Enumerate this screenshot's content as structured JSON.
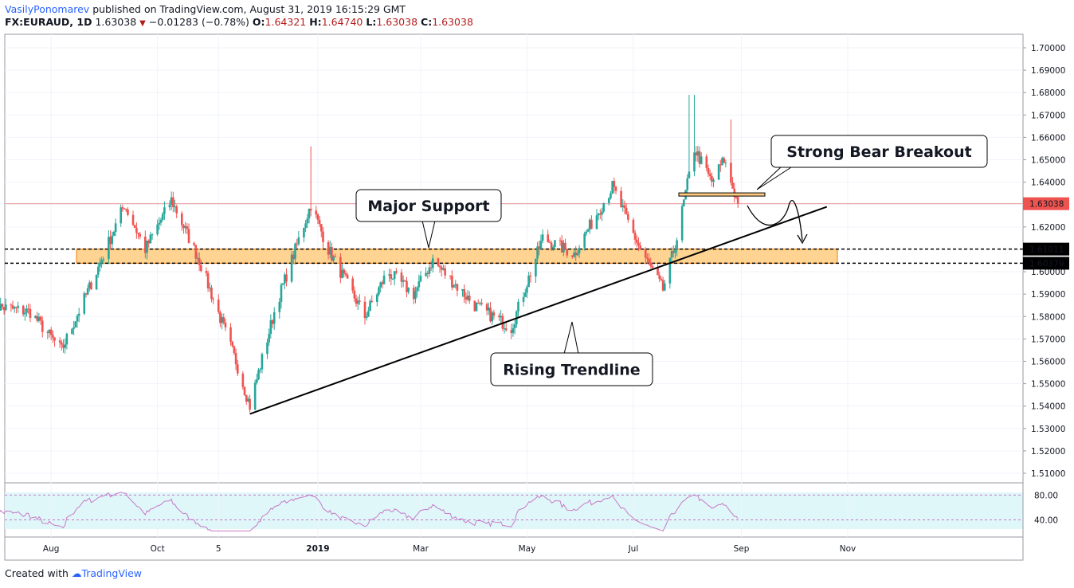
{
  "header": {
    "author": "VasilyPonomarev",
    "published_text": "published on TradingView.com, August 31, 2019 16:15:29 GMT",
    "symbol": "FX:EURAUD, 1D",
    "last": "1.63038",
    "change": "−0.01283 (−0.78%)",
    "o_label": "O:",
    "o_value": "1.64321",
    "h_label": "H:",
    "h_value": "1.64740",
    "l_label": "L:",
    "l_value": "1.63038",
    "c_label": "C:",
    "c_value": "1.63038"
  },
  "footer": {
    "created_with": "Created with",
    "brand": "TradingView"
  },
  "colors": {
    "up": "#26a69a",
    "down": "#ef5350",
    "zone": "#ffcc80",
    "rsi_line": "#c678c6",
    "rsi_band": "#e0f7fa",
    "price_line": "#ef9a9a"
  },
  "chart_data": {
    "type": "candlestick",
    "symbol": "FX:EURAUD",
    "timeframe": "1D",
    "ylim": [
      1.505,
      1.705
    ],
    "y_ticks": [
      "1.70000",
      "1.69000",
      "1.68000",
      "1.67000",
      "1.66000",
      "1.65000",
      "1.64000",
      "1.63000",
      "1.62000",
      "1.61000",
      "1.60000",
      "1.59000",
      "1.58000",
      "1.57000",
      "1.56000",
      "1.55000",
      "1.54000",
      "1.53000",
      "1.52000",
      "1.51000"
    ],
    "x_ticks": [
      "Aug",
      "Oct",
      "5",
      "2019",
      "Mar",
      "May",
      "Jul",
      "Sep",
      "Nov"
    ],
    "price_badges": [
      {
        "label": "1.63038",
        "value": 1.63038,
        "kind": "last"
      },
      {
        "label": "1.61011",
        "value": 1.61011,
        "kind": "level"
      },
      {
        "label": "1.60379",
        "value": 1.60379,
        "kind": "level"
      }
    ],
    "support_zone": {
      "from": 1.60379,
      "to": 1.61011
    },
    "breakout_level": 1.6345,
    "trendline": {
      "from": [
        "2018-11-23",
        1.5365
      ],
      "to": [
        "2019-10-20",
        1.629
      ]
    },
    "annotations": [
      "Major Support",
      "Strong  Bear Breakout",
      "Rising Trendline"
    ],
    "anchors": [
      [
        "2018-06-27",
        1.585
      ],
      [
        "2018-07-20",
        1.582
      ],
      [
        "2018-08-07",
        1.565
      ],
      [
        "2018-08-27",
        1.6
      ],
      [
        "2018-09-12",
        1.63
      ],
      [
        "2018-09-24",
        1.61
      ],
      [
        "2018-10-09",
        1.632
      ],
      [
        "2018-10-25",
        1.605
      ],
      [
        "2018-11-15",
        1.56
      ],
      [
        "2018-11-23",
        1.54
      ],
      [
        "2018-12-08",
        1.585
      ],
      [
        "2018-12-28",
        1.63
      ],
      [
        "2019-01-07",
        1.61
      ],
      [
        "2019-01-28",
        1.58
      ],
      [
        "2019-02-10",
        1.6
      ],
      [
        "2019-02-25",
        1.59
      ],
      [
        "2019-03-08",
        1.605
      ],
      [
        "2019-04-01",
        1.585
      ],
      [
        "2019-04-22",
        1.575
      ],
      [
        "2019-05-10",
        1.615
      ],
      [
        "2019-05-28",
        1.608
      ],
      [
        "2019-06-19",
        1.638
      ],
      [
        "2019-07-05",
        1.61
      ],
      [
        "2019-07-18",
        1.592
      ],
      [
        "2019-07-26",
        1.615
      ],
      [
        "2019-08-05",
        1.655
      ],
      [
        "2019-08-15",
        1.64
      ],
      [
        "2019-08-22",
        1.65
      ],
      [
        "2019-08-30",
        1.6304
      ]
    ],
    "rsi": {
      "levels": [
        80,
        40
      ],
      "level_labels": [
        "80.00",
        "40.00"
      ],
      "ylim": [
        20,
        92
      ]
    }
  }
}
